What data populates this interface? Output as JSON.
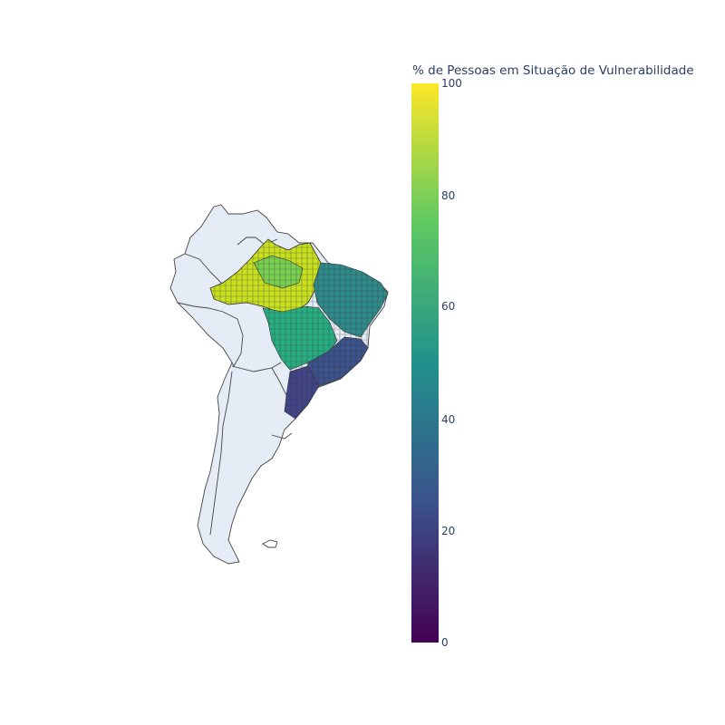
{
  "colorbar": {
    "title": "% de Pessoas em Situação de Vulnerabilidade",
    "min": 0,
    "max": 100,
    "ticks": [
      "0",
      "20",
      "40",
      "60",
      "80",
      "100"
    ],
    "colorscale": [
      "#440154",
      "#3b528b",
      "#21918c",
      "#5ec962",
      "#fde725"
    ]
  },
  "map": {
    "land_color": "#e5ecf6",
    "border_color": "#444444",
    "region": "South America",
    "highlighted_country": "Brazil"
  }
}
